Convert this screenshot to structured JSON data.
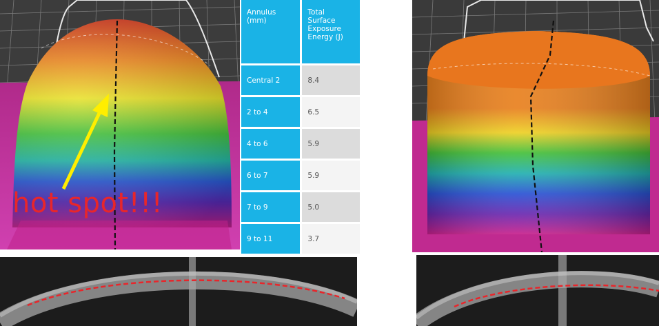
{
  "annotation": {
    "text": "hot spot!!!"
  },
  "table": {
    "header": {
      "annulus": "Annulus (mm)",
      "energy": "Total Surface Exposure Energy (J)"
    },
    "rows": [
      {
        "annulus": "Central 2",
        "energy": "8.4"
      },
      {
        "annulus": "2 to 4",
        "energy": "6.5"
      },
      {
        "annulus": "4 to 6",
        "energy": "5.9"
      },
      {
        "annulus": "6 to 7",
        "energy": "5.9"
      },
      {
        "annulus": "7 to 9",
        "energy": "5.0"
      },
      {
        "annulus": "9 to 11",
        "energy": "3.7"
      }
    ]
  },
  "colors": {
    "table_accent": "#1ab3e6",
    "annotation": "#e8262b",
    "arrow": "#ffee00"
  }
}
